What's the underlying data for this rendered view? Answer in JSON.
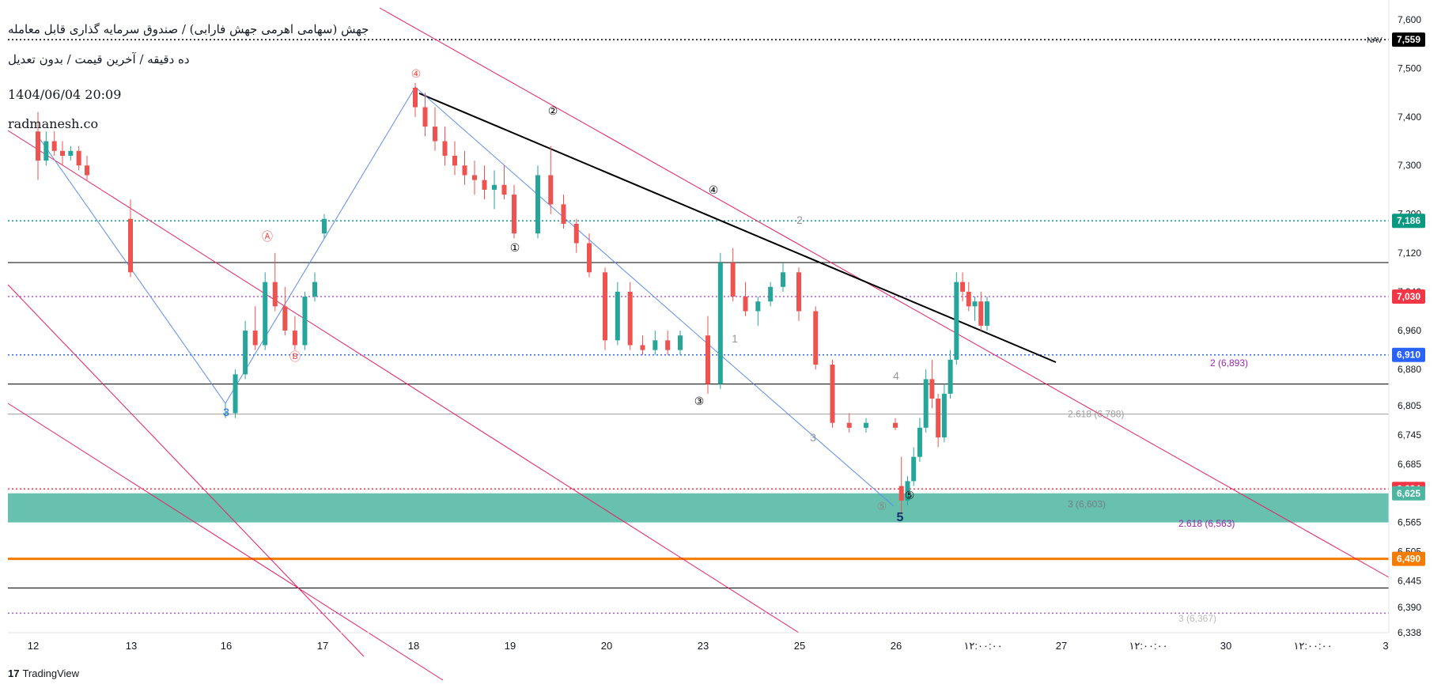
{
  "header": {
    "symbol_line": "جهش (سهامی اهرمی جهش فارابی) / صندوق سرمایه گذاری قابل معامله",
    "meta_line": "ده دقیقه / آخرین قیمت / بدون تعدیل",
    "datetime": "1404/06/04 20:09",
    "site": "radmanesh.co"
  },
  "footer": {
    "logo_mark": "17",
    "logo_text": "TradingView"
  },
  "colors": {
    "up": "#26a69a",
    "down": "#ef5350",
    "channel": "#e91e63",
    "wave_line": "#5b8def",
    "black_line": "#000000",
    "support_zone": "#4db6a0",
    "orange_line": "#f57c00",
    "nav": "#000000",
    "green_dotted": "#089981",
    "blue_dotted": "#2962ff",
    "red_dotted": "#f23645"
  },
  "chart_data": {
    "type": "candlestick",
    "y_axis": {
      "ticks": [
        "7,600",
        "7,500",
        "7,400",
        "7,300",
        "7,200",
        "7,120",
        "7,040",
        "6,960",
        "6,880",
        "6,805",
        "6,745",
        "6,685",
        "6,625",
        "6,565",
        "6,505",
        "6,445",
        "6,390",
        "6,338"
      ]
    },
    "x_axis": {
      "ticks": [
        "12",
        "13",
        "16",
        "17",
        "18",
        "19",
        "20",
        "23",
        "25",
        "26",
        "۱۲:۰۰:۰۰",
        "27",
        "۱۲:۰۰:۰۰",
        "30",
        "۱۲:۰۰:۰۰",
        "3"
      ]
    },
    "price_badges": [
      {
        "label": "NAV",
        "value": "7,559",
        "color": "#000000"
      },
      {
        "label": "",
        "value": "7,186",
        "color": "#089981"
      },
      {
        "label": "",
        "value": "7,030",
        "color": "#f23645"
      },
      {
        "label": "",
        "value": "6,910",
        "color": "#2962ff"
      },
      {
        "label": "",
        "value": "6,634",
        "color": "#f23645"
      },
      {
        "label": "",
        "value": "6,625",
        "color": "#4db6a0"
      },
      {
        "label": "",
        "value": "6,490",
        "color": "#f57c00"
      }
    ],
    "horizontal_levels": [
      {
        "value": 7559,
        "style": "dotted",
        "color": "#000000"
      },
      {
        "value": 7186,
        "style": "dotted",
        "color": "#089981"
      },
      {
        "value": 7100,
        "style": "solid",
        "color": "#000000"
      },
      {
        "value": 7030,
        "style": "dotted",
        "color": "#b15ad8"
      },
      {
        "value": 6910,
        "style": "dotted",
        "color": "#2962ff"
      },
      {
        "value": 6850,
        "style": "solid",
        "color": "#000000"
      },
      {
        "value": 6788,
        "style": "solid",
        "color": "#9e9e9e"
      },
      {
        "value": 6634,
        "style": "dotted",
        "color": "#f23645"
      },
      {
        "value": 6490,
        "style": "solid",
        "color": "#f57c00"
      },
      {
        "value": 6430,
        "style": "solid",
        "color": "#000000"
      },
      {
        "value": 6378,
        "style": "dotted",
        "color": "#b15ad8"
      }
    ],
    "support_zone": {
      "top": 6625,
      "bottom": 6565
    },
    "fib_labels": [
      {
        "text": "2 (6,893)",
        "value": 6893,
        "color": "#9c27b0"
      },
      {
        "text": "2.618 (6,788)",
        "value": 6788,
        "color": "#9e9e9e"
      },
      {
        "text": "3 (6,603)",
        "value": 6603,
        "color": "#787b86"
      },
      {
        "text": "2.618 (6,563)",
        "value": 6563,
        "color": "#9c27b0"
      },
      {
        "text": "3 (6,367)",
        "value": 6367,
        "color": "#bdbdbd"
      }
    ],
    "wave_labels": [
      "①",
      "②",
      "③",
      "④",
      "⑤",
      "⑤",
      "5",
      "Ⓐ",
      "Ⓑ",
      "④",
      "3",
      "2",
      "4",
      "3",
      "1"
    ],
    "candles": [
      {
        "o": 7370,
        "h": 7410,
        "l": 7270,
        "c": 7310
      },
      {
        "o": 7310,
        "h": 7370,
        "l": 7300,
        "c": 7350
      },
      {
        "o": 7350,
        "h": 7370,
        "l": 7320,
        "c": 7330
      },
      {
        "o": 7330,
        "h": 7350,
        "l": 7300,
        "c": 7320
      },
      {
        "o": 7320,
        "h": 7340,
        "l": 7310,
        "c": 7330
      },
      {
        "o": 7330,
        "h": 7340,
        "l": 7290,
        "c": 7300
      },
      {
        "o": 7300,
        "h": 7320,
        "l": 7270,
        "c": 7280
      },
      {
        "o": 7190,
        "h": 7230,
        "l": 7070,
        "c": 7080
      },
      {
        "o": 6790,
        "h": 6810,
        "l": 6780,
        "c": 6790
      },
      {
        "o": 6790,
        "h": 6880,
        "l": 6780,
        "c": 6870
      },
      {
        "o": 6870,
        "h": 6980,
        "l": 6860,
        "c": 6960
      },
      {
        "o": 6960,
        "h": 7010,
        "l": 6920,
        "c": 6930
      },
      {
        "o": 6930,
        "h": 7080,
        "l": 6920,
        "c": 7060
      },
      {
        "o": 7060,
        "h": 7120,
        "l": 7000,
        "c": 7010
      },
      {
        "o": 7010,
        "h": 7050,
        "l": 6950,
        "c": 6960
      },
      {
        "o": 6960,
        "h": 6990,
        "l": 6920,
        "c": 6930
      },
      {
        "o": 6930,
        "h": 7040,
        "l": 6920,
        "c": 7030
      },
      {
        "o": 7030,
        "h": 7080,
        "l": 7020,
        "c": 7060
      },
      {
        "o": 7160,
        "h": 7200,
        "l": 7150,
        "c": 7190
      },
      {
        "o": 7460,
        "h": 7470,
        "l": 7400,
        "c": 7420
      },
      {
        "o": 7420,
        "h": 7450,
        "l": 7360,
        "c": 7380
      },
      {
        "o": 7380,
        "h": 7420,
        "l": 7330,
        "c": 7350
      },
      {
        "o": 7350,
        "h": 7380,
        "l": 7300,
        "c": 7320
      },
      {
        "o": 7320,
        "h": 7350,
        "l": 7280,
        "c": 7300
      },
      {
        "o": 7300,
        "h": 7330,
        "l": 7260,
        "c": 7280
      },
      {
        "o": 7280,
        "h": 7310,
        "l": 7240,
        "c": 7270
      },
      {
        "o": 7270,
        "h": 7300,
        "l": 7230,
        "c": 7250
      },
      {
        "o": 7250,
        "h": 7290,
        "l": 7210,
        "c": 7260
      },
      {
        "o": 7260,
        "h": 7300,
        "l": 7230,
        "c": 7240
      },
      {
        "o": 7240,
        "h": 7260,
        "l": 7150,
        "c": 7160
      },
      {
        "o": 7160,
        "h": 7300,
        "l": 7150,
        "c": 7280
      },
      {
        "o": 7280,
        "h": 7340,
        "l": 7200,
        "c": 7220
      },
      {
        "o": 7220,
        "h": 7240,
        "l": 7170,
        "c": 7180
      },
      {
        "o": 7180,
        "h": 7190,
        "l": 7120,
        "c": 7140
      },
      {
        "o": 7140,
        "h": 7160,
        "l": 7070,
        "c": 7080
      },
      {
        "o": 7080,
        "h": 7090,
        "l": 6920,
        "c": 6940
      },
      {
        "o": 6940,
        "h": 7060,
        "l": 6930,
        "c": 7040
      },
      {
        "o": 7040,
        "h": 7060,
        "l": 6920,
        "c": 6930
      },
      {
        "o": 6930,
        "h": 6950,
        "l": 6910,
        "c": 6920
      },
      {
        "o": 6920,
        "h": 6960,
        "l": 6910,
        "c": 6940
      },
      {
        "o": 6940,
        "h": 6960,
        "l": 6910,
        "c": 6920
      },
      {
        "o": 6920,
        "h": 6960,
        "l": 6910,
        "c": 6950
      },
      {
        "o": 6950,
        "h": 6990,
        "l": 6830,
        "c": 6850
      },
      {
        "o": 6850,
        "h": 7120,
        "l": 6840,
        "c": 7100
      },
      {
        "o": 7100,
        "h": 7130,
        "l": 7020,
        "c": 7030
      },
      {
        "o": 7030,
        "h": 7060,
        "l": 6990,
        "c": 7000
      },
      {
        "o": 7000,
        "h": 7030,
        "l": 6970,
        "c": 7020
      },
      {
        "o": 7020,
        "h": 7060,
        "l": 7010,
        "c": 7050
      },
      {
        "o": 7050,
        "h": 7100,
        "l": 7040,
        "c": 7080
      },
      {
        "o": 7080,
        "h": 7090,
        "l": 6980,
        "c": 7000
      },
      {
        "o": 7000,
        "h": 7010,
        "l": 6880,
        "c": 6890
      },
      {
        "o": 6890,
        "h": 6900,
        "l": 6760,
        "c": 6770
      },
      {
        "o": 6770,
        "h": 6790,
        "l": 6750,
        "c": 6760
      },
      {
        "o": 6760,
        "h": 6780,
        "l": 6750,
        "c": 6770
      },
      {
        "o": 6770,
        "h": 6780,
        "l": 6755,
        "c": 6760
      },
      {
        "o": 6640,
        "h": 6700,
        "l": 6580,
        "c": 6610
      },
      {
        "o": 6610,
        "h": 6660,
        "l": 6600,
        "c": 6650
      },
      {
        "o": 6650,
        "h": 6720,
        "l": 6640,
        "c": 6700
      },
      {
        "o": 6700,
        "h": 6780,
        "l": 6690,
        "c": 6760
      },
      {
        "o": 6760,
        "h": 6880,
        "l": 6750,
        "c": 6860
      },
      {
        "o": 6860,
        "h": 6900,
        "l": 6800,
        "c": 6820
      },
      {
        "o": 6820,
        "h": 6830,
        "l": 6720,
        "c": 6740
      },
      {
        "o": 6740,
        "h": 6850,
        "l": 6730,
        "c": 6830
      },
      {
        "o": 6830,
        "h": 6920,
        "l": 6820,
        "c": 6900
      },
      {
        "o": 6900,
        "h": 7080,
        "l": 6890,
        "c": 7060
      },
      {
        "o": 7060,
        "h": 7080,
        "l": 7020,
        "c": 7040
      },
      {
        "o": 7040,
        "h": 7060,
        "l": 7000,
        "c": 7010
      },
      {
        "o": 7010,
        "h": 7030,
        "l": 6980,
        "c": 7020
      },
      {
        "o": 7020,
        "h": 7040,
        "l": 6960,
        "c": 6970
      },
      {
        "o": 6970,
        "h": 7030,
        "l": 6960,
        "c": 7020
      },
      {
        "o": 7020,
        "h": 7060,
        "l": 7010,
        "c": 7030
      }
    ]
  }
}
